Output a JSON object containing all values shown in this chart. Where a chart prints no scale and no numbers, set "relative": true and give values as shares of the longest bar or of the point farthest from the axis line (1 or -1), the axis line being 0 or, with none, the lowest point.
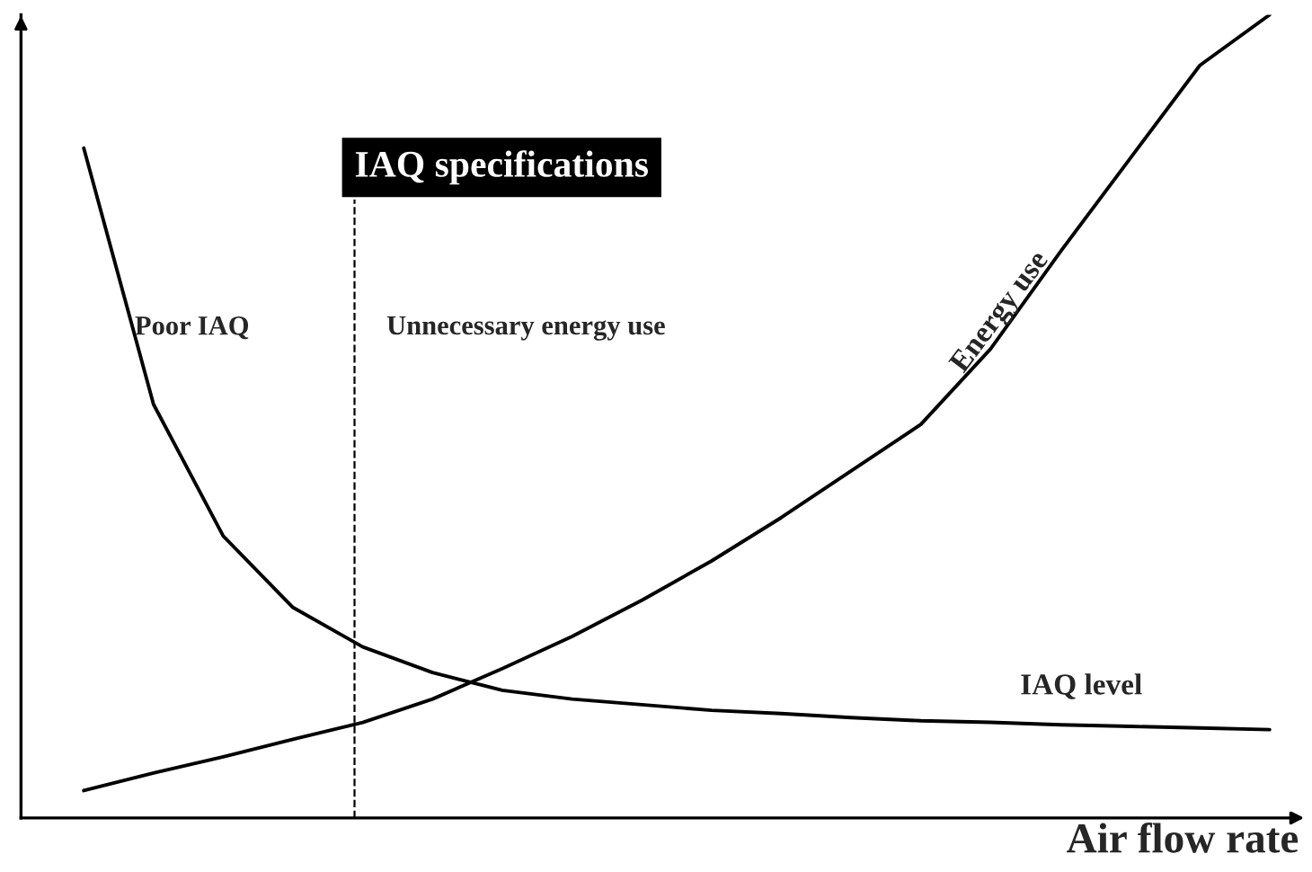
{
  "chart_data": {
    "type": "line",
    "relative": true,
    "xlabel": "Air flow rate",
    "categories": [
      null,
      null,
      null,
      null,
      null,
      null,
      null,
      null,
      null,
      null,
      null,
      null,
      null,
      null,
      null,
      null,
      null,
      null
    ],
    "series": [
      {
        "name": "Energy use",
        "color": "#000000",
        "values": [
          0.034,
          0.056,
          0.076,
          0.098,
          0.119,
          0.148,
          0.186,
          0.226,
          0.271,
          0.32,
          0.374,
          0.432,
          0.49,
          0.584,
          0.705,
          0.821,
          0.937,
          1.0
        ]
      },
      {
        "name": "IAQ level",
        "color": "#000000",
        "values": [
          0.834,
          0.515,
          0.351,
          0.262,
          0.213,
          0.181,
          0.159,
          0.148,
          0.141,
          0.134,
          0.13,
          0.125,
          0.121,
          0.119,
          0.116,
          0.114,
          0.112,
          0.11
        ]
      }
    ],
    "annotations": [
      "IAQ specifications",
      "Poor IAQ",
      "Unnecessary energy use"
    ],
    "marker": "none",
    "line_style": "solid",
    "legend": false
  }
}
